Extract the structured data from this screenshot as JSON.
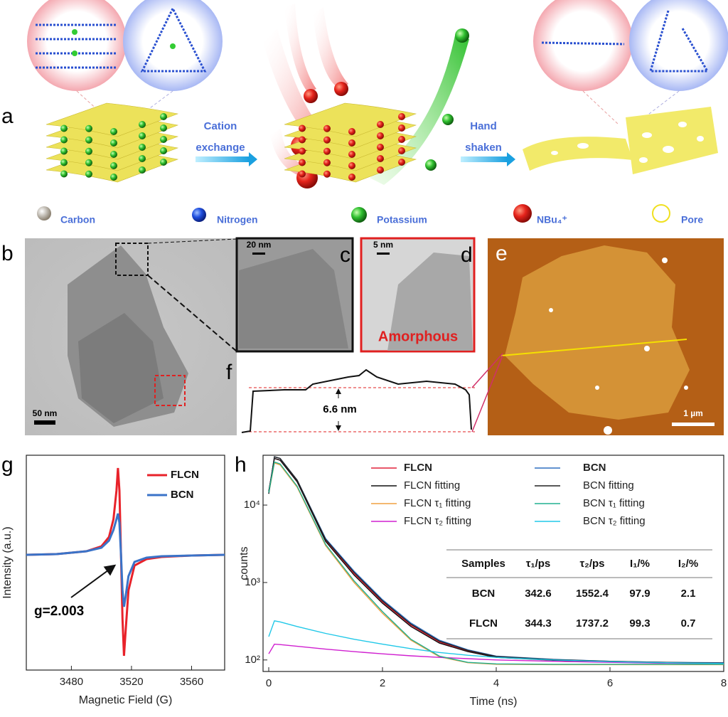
{
  "panel_labels": [
    "a",
    "b",
    "c",
    "d",
    "e",
    "f",
    "g",
    "h"
  ],
  "schematic": {
    "step1": [
      "Cation",
      "exchange"
    ],
    "step2": [
      "Hand",
      "shaken"
    ],
    "legend": [
      "Carbon",
      "Nitrogen",
      "Potassium",
      "NBu₄⁺",
      "Pore"
    ]
  },
  "microscopy": {
    "b_scale": "50 nm",
    "c_scale": "20 nm",
    "d_scale": "5 nm",
    "d_label": "Amorphous",
    "e_scale": "1 µm",
    "f_height": "6.6 nm"
  },
  "chart_data": [
    {
      "type": "line",
      "xlabel": "Magnetic Field (G)",
      "ylabel": "Intensity (a.u.)",
      "annotation": "g=2.003",
      "x": [
        3450,
        3470,
        3490,
        3500,
        3505,
        3508,
        3510,
        3511,
        3512,
        3513,
        3514,
        3515,
        3516,
        3518,
        3522,
        3530,
        3540,
        3560,
        3582
      ],
      "xlim": [
        3450,
        3582
      ],
      "xticks": [
        3480,
        3520,
        3560
      ],
      "ylim": [
        -1.62,
        1.4
      ],
      "series": [
        {
          "name": "FLCN",
          "color": "#e8222a",
          "values": [
            0,
            0.01,
            0.05,
            0.12,
            0.25,
            0.5,
            0.9,
            1.22,
            0.9,
            0,
            -0.9,
            -1.42,
            -1.1,
            -0.5,
            -0.15,
            -0.06,
            -0.03,
            -0.01,
            0
          ]
        },
        {
          "name": "BCN",
          "color": "#3a73c8",
          "values": [
            0,
            0.01,
            0.05,
            0.1,
            0.2,
            0.35,
            0.5,
            0.58,
            0.45,
            0,
            -0.5,
            -0.73,
            -0.6,
            -0.3,
            -0.1,
            -0.04,
            -0.02,
            -0.01,
            0
          ]
        }
      ]
    },
    {
      "type": "line",
      "log_y": true,
      "xlabel": "Time (ns)",
      "ylabel": "counts",
      "x": [
        0,
        0.1,
        0.2,
        0.5,
        1,
        1.5,
        2,
        2.5,
        3,
        3.5,
        4,
        5,
        6,
        7,
        8
      ],
      "xlim": [
        -0.1,
        8
      ],
      "xticks": [
        0,
        2,
        4,
        6,
        8
      ],
      "ylim": [
        71,
        44000
      ],
      "yticks": [
        {
          "value": 100,
          "label": "10²"
        },
        {
          "value": 1000,
          "label": "10³"
        },
        {
          "value": 10000,
          "label": "10⁴"
        }
      ],
      "series": [
        {
          "name": "FLCN",
          "color": "#e0203a",
          "values": [
            15000,
            40000,
            38000,
            20000,
            3500,
            1300,
            560,
            280,
            170,
            130,
            110,
            100,
            95,
            92,
            90
          ]
        },
        {
          "name": "FLCN fitting",
          "color": "#111111",
          "values": [
            15000,
            40000,
            38000,
            20000,
            3400,
            1250,
            540,
            270,
            165,
            128,
            108,
            99,
            94,
            91,
            90
          ]
        },
        {
          "name": "FLCN τ₁ fitting",
          "color": "#f0a040",
          "values": [
            14000,
            35000,
            33000,
            17000,
            3000,
            1000,
            400,
            180,
            110,
            92,
            88,
            87,
            87,
            87,
            87
          ]
        },
        {
          "name": "FLCN τ₂ fitting",
          "color": "#d020d0",
          "values": [
            120,
            160,
            158,
            150,
            138,
            128,
            120,
            113,
            108,
            104,
            100,
            96,
            93,
            91,
            90
          ]
        },
        {
          "name": "BCN",
          "color": "#2f6fc0",
          "values": [
            14000,
            42000,
            40000,
            21000,
            3700,
            1400,
            600,
            300,
            180,
            135,
            112,
            102,
            96,
            93,
            92
          ]
        },
        {
          "name": "BCN fitting",
          "color": "#222222",
          "values": [
            14000,
            42000,
            40000,
            21000,
            3600,
            1350,
            580,
            290,
            175,
            133,
            111,
            101,
            96,
            93,
            91
          ]
        },
        {
          "name": "BCN τ₁ fitting",
          "color": "#20b090",
          "values": [
            14500,
            36000,
            34000,
            17500,
            3100,
            1050,
            420,
            185,
            112,
            93,
            89,
            88,
            88,
            88,
            88
          ]
        },
        {
          "name": "BCN τ₂ fitting",
          "color": "#20c8e8",
          "values": [
            200,
            320,
            310,
            270,
            220,
            185,
            160,
            140,
            125,
            115,
            108,
            100,
            95,
            92,
            90
          ]
        }
      ],
      "table": {
        "header": [
          "Samples",
          "τ₁/ps",
          "τ₂/ps",
          "I₁/%",
          "I₂/%"
        ],
        "rows": [
          [
            "BCN",
            342.6,
            1552.4,
            97.9,
            2.1
          ],
          [
            "FLCN",
            344.3,
            1737.2,
            99.3,
            0.7
          ]
        ]
      }
    }
  ]
}
